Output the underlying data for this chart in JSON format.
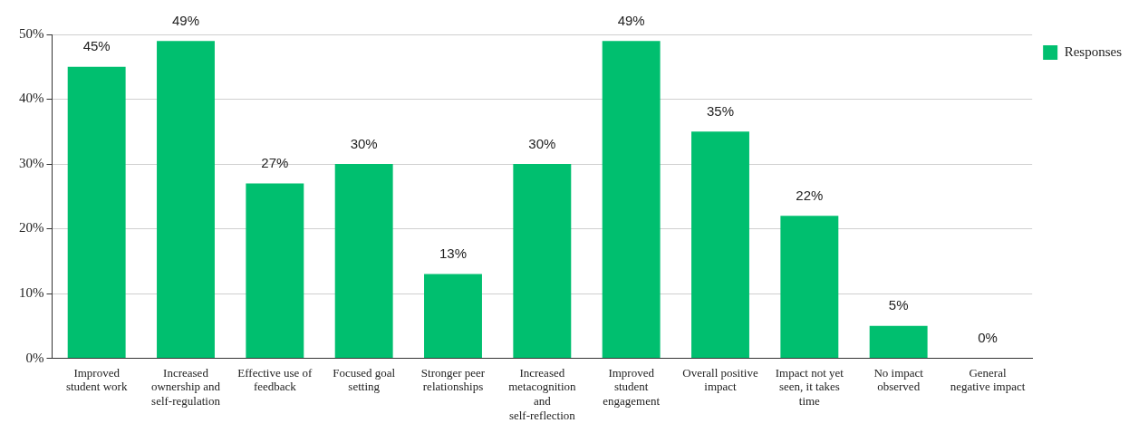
{
  "chart_data": {
    "type": "bar",
    "categories": [
      "Improved student work",
      "Increased ownership and self-regulation",
      "Effective use of feedback",
      "Focused goal setting",
      "Stronger peer relationships",
      "Increased metacognition and self-reflection",
      "Improved student engagement",
      "Overall positive impact",
      "Impact not yet seen, it takes time",
      "No impact observed",
      "General negative impact"
    ],
    "series": [
      {
        "name": "Responses",
        "color": "#00bf6f",
        "values": [
          45,
          49,
          27,
          30,
          13,
          30,
          49,
          35,
          22,
          5,
          0
        ],
        "value_labels": [
          "45%",
          "49%",
          "27%",
          "30%",
          "13%",
          "30%",
          "49%",
          "35%",
          "22%",
          "5%",
          "0%"
        ]
      }
    ],
    "ylim": [
      0,
      50
    ],
    "yticks": [
      {
        "value": 0,
        "label": "0%"
      },
      {
        "value": 10,
        "label": "10%"
      },
      {
        "value": 20,
        "label": "20%"
      },
      {
        "value": 30,
        "label": "30%"
      },
      {
        "value": 40,
        "label": "40%"
      },
      {
        "value": 50,
        "label": "50%"
      }
    ],
    "grid": "y",
    "legend": "top right"
  }
}
